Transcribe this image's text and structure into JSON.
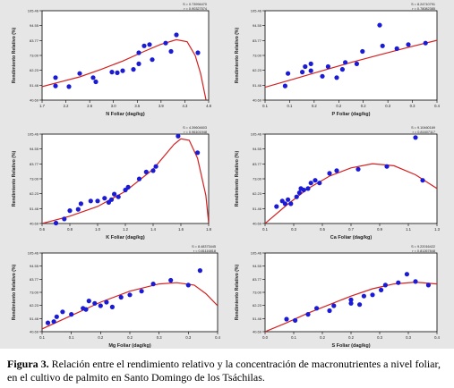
{
  "caption": {
    "label": "Figura 3.",
    "text": "Relación entre el rendimiento relativo y la concentración de macronutrientes a nivel foliar, en el cultivo de palmito en Santo Domingo de los Tsáchilas."
  },
  "colors": {
    "point": "#1b1bd6",
    "curve": "#d42020",
    "panel": "#e6e6e6",
    "plot_bg": "#ffffff"
  },
  "chart_data": [
    {
      "type": "scatter",
      "xlabel": "N Foliar (dag/kg)",
      "ylabel": "Rendimiento Relativo (%)",
      "stats": [
        "S = 0.73994470",
        "r = 0.90327574"
      ],
      "xticks": [
        "1.7",
        "2.2",
        "2.6",
        "3.0",
        "3.5",
        "3.9",
        "4.3",
        "4.8"
      ],
      "yticks": [
        "40.69",
        "51.46",
        "62.23",
        "73.00",
        "83.77",
        "94.55",
        "105.46"
      ],
      "xlim": [
        1.7,
        4.8
      ],
      "ylim": [
        40.69,
        105.46
      ],
      "points": [
        [
          1.95,
          57
        ],
        [
          1.95,
          51
        ],
        [
          2.2,
          50.5
        ],
        [
          2.4,
          60
        ],
        [
          2.65,
          57
        ],
        [
          2.7,
          54
        ],
        [
          3.0,
          61
        ],
        [
          3.1,
          60.5
        ],
        [
          3.2,
          62
        ],
        [
          3.4,
          63
        ],
        [
          3.5,
          67
        ],
        [
          3.5,
          75
        ],
        [
          3.6,
          80
        ],
        [
          3.7,
          81
        ],
        [
          3.75,
          70
        ],
        [
          4.0,
          82
        ],
        [
          4.1,
          76
        ],
        [
          4.2,
          88
        ],
        [
          4.6,
          75
        ]
      ],
      "curve": [
        [
          1.7,
          50.5
        ],
        [
          2.0,
          53.5
        ],
        [
          2.4,
          57.5
        ],
        [
          2.8,
          63
        ],
        [
          3.2,
          69
        ],
        [
          3.6,
          76
        ],
        [
          3.9,
          81
        ],
        [
          4.2,
          84.5
        ],
        [
          4.4,
          83
        ],
        [
          4.55,
          73
        ],
        [
          4.65,
          60
        ],
        [
          4.75,
          41
        ]
      ]
    },
    {
      "type": "scatter",
      "xlabel": "P Foliar (dag/kg)",
      "ylabel": "Rendimiento Relativo (%)",
      "stats": [
        "S = 8.24710791",
        "r = 0.78082385"
      ],
      "xticks": [
        "0.1",
        "0.1",
        "0.2",
        "0.2",
        "0.2",
        "0.3",
        "0.3",
        "0.4"
      ],
      "yticks": [
        "40.69",
        "51.46",
        "62.23",
        "73.00",
        "83.77",
        "94.55",
        "105.46"
      ],
      "xlim": [
        0.1,
        0.4
      ],
      "ylim": [
        40.69,
        105.46
      ],
      "points": [
        [
          0.135,
          51
        ],
        [
          0.14,
          60
        ],
        [
          0.165,
          61
        ],
        [
          0.17,
          65
        ],
        [
          0.18,
          67
        ],
        [
          0.18,
          62
        ],
        [
          0.2,
          58
        ],
        [
          0.21,
          65
        ],
        [
          0.225,
          57
        ],
        [
          0.235,
          63
        ],
        [
          0.24,
          68
        ],
        [
          0.26,
          67
        ],
        [
          0.27,
          76
        ],
        [
          0.3,
          95
        ],
        [
          0.305,
          80
        ],
        [
          0.33,
          78
        ],
        [
          0.35,
          81
        ],
        [
          0.38,
          82
        ]
      ],
      "curve": [
        [
          0.1,
          50
        ],
        [
          0.15,
          56
        ],
        [
          0.2,
          62
        ],
        [
          0.25,
          68
        ],
        [
          0.3,
          73.5
        ],
        [
          0.35,
          79
        ],
        [
          0.4,
          84
        ]
      ]
    },
    {
      "type": "scatter",
      "xlabel": "K Foliar (dag/kg)",
      "ylabel": "Rendimiento Relativo (%)",
      "stats": [
        "S = 4.39604603",
        "r = 0.96101948"
      ],
      "xticks": [
        "0.6",
        "0.8",
        "1.0",
        "1.2",
        "1.4",
        "1.6",
        "1.8"
      ],
      "yticks": [
        "40.69",
        "51.46",
        "62.23",
        "73.00",
        "83.77",
        "94.55",
        "105.46"
      ],
      "xlim": [
        0.6,
        1.8
      ],
      "ylim": [
        40.69,
        105.46
      ],
      "points": [
        [
          0.7,
          41
        ],
        [
          0.76,
          44
        ],
        [
          0.8,
          50
        ],
        [
          0.86,
          51
        ],
        [
          0.88,
          55
        ],
        [
          0.95,
          57
        ],
        [
          1.0,
          57
        ],
        [
          1.05,
          59
        ],
        [
          1.08,
          56
        ],
        [
          1.1,
          58
        ],
        [
          1.12,
          62
        ],
        [
          1.15,
          60
        ],
        [
          1.2,
          65
        ],
        [
          1.22,
          67
        ],
        [
          1.3,
          73
        ],
        [
          1.35,
          78
        ],
        [
          1.4,
          79
        ],
        [
          1.42,
          82
        ],
        [
          1.58,
          104
        ],
        [
          1.72,
          92
        ]
      ],
      "curve": [
        [
          0.6,
          40.7
        ],
        [
          0.8,
          46
        ],
        [
          1.0,
          53
        ],
        [
          1.2,
          64
        ],
        [
          1.4,
          80
        ],
        [
          1.55,
          98
        ],
        [
          1.6,
          102
        ],
        [
          1.66,
          101
        ],
        [
          1.72,
          88
        ],
        [
          1.78,
          61
        ],
        [
          1.8,
          41
        ]
      ]
    },
    {
      "type": "scatter",
      "xlabel": "Ca Foliar (dag/kg)",
      "ylabel": "Rendimiento Relativo (%)",
      "stats": [
        "S = 9.10460169",
        "r = 0.81607117"
      ],
      "xticks": [
        "0.1",
        "0.3",
        "0.5",
        "0.7",
        "0.9",
        "1.1",
        "1.3"
      ],
      "yticks": [
        "40.69",
        "51.46",
        "62.23",
        "73.00",
        "83.77",
        "94.55",
        "105.46"
      ],
      "xlim": [
        0.1,
        1.3
      ],
      "ylim": [
        40.69,
        105.46
      ],
      "points": [
        [
          0.18,
          53
        ],
        [
          0.22,
          57
        ],
        [
          0.24,
          55
        ],
        [
          0.26,
          58
        ],
        [
          0.28,
          55
        ],
        [
          0.32,
          60
        ],
        [
          0.34,
          63
        ],
        [
          0.35,
          66
        ],
        [
          0.37,
          65
        ],
        [
          0.4,
          66
        ],
        [
          0.42,
          70
        ],
        [
          0.45,
          72
        ],
        [
          0.48,
          70
        ],
        [
          0.55,
          77
        ],
        [
          0.6,
          79
        ],
        [
          0.75,
          80
        ],
        [
          0.95,
          82
        ],
        [
          1.15,
          103
        ],
        [
          1.2,
          72
        ]
      ],
      "curve": [
        [
          0.1,
          40.7
        ],
        [
          0.25,
          54
        ],
        [
          0.4,
          66
        ],
        [
          0.55,
          75
        ],
        [
          0.7,
          81
        ],
        [
          0.85,
          84
        ],
        [
          1.0,
          82.5
        ],
        [
          1.15,
          76
        ],
        [
          1.3,
          66
        ]
      ]
    },
    {
      "type": "scatter",
      "xlabel": "Mg Foliar (dag/kg)",
      "ylabel": "Rendimiento Relativo (%)",
      "stats": [
        "S = 8.48373445",
        "r = 0.81116818"
      ],
      "xticks": [
        "0.1",
        "0.1",
        "0.2",
        "0.2",
        "0.3",
        "0.3",
        "0.4"
      ],
      "yticks": [
        "40.69",
        "51.46",
        "62.23",
        "73.00",
        "83.77",
        "94.55",
        "105.46"
      ],
      "xlim": [
        0.1,
        0.4
      ],
      "ylim": [
        40.69,
        105.46
      ],
      "points": [
        [
          0.11,
          48
        ],
        [
          0.12,
          49
        ],
        [
          0.125,
          53
        ],
        [
          0.135,
          57
        ],
        [
          0.15,
          55
        ],
        [
          0.17,
          60
        ],
        [
          0.175,
          59
        ],
        [
          0.18,
          66
        ],
        [
          0.19,
          64
        ],
        [
          0.2,
          62
        ],
        [
          0.21,
          65
        ],
        [
          0.22,
          61
        ],
        [
          0.235,
          69
        ],
        [
          0.25,
          71
        ],
        [
          0.27,
          74
        ],
        [
          0.29,
          80
        ],
        [
          0.32,
          83
        ],
        [
          0.35,
          79
        ],
        [
          0.37,
          91
        ]
      ],
      "curve": [
        [
          0.1,
          43
        ],
        [
          0.15,
          54
        ],
        [
          0.2,
          65
        ],
        [
          0.25,
          74
        ],
        [
          0.3,
          80
        ],
        [
          0.33,
          81
        ],
        [
          0.36,
          79
        ],
        [
          0.38,
          72
        ],
        [
          0.4,
          62
        ]
      ]
    },
    {
      "type": "scatter",
      "xlabel": "S Foliar (dag/kg)",
      "ylabel": "Rendimiento Relativo (%)",
      "stats": [
        "S = 9.22016422",
        "r = 0.81267848"
      ],
      "xticks": [
        "0.0",
        "0.1",
        "0.2",
        "0.2",
        "0.3",
        "0.3",
        "0.4"
      ],
      "yticks": [
        "40.69",
        "51.46",
        "62.23",
        "73.00",
        "83.77",
        "94.55",
        "105.46"
      ],
      "xlim": [
        0.0,
        0.4
      ],
      "ylim": [
        40.69,
        105.46
      ],
      "points": [
        [
          0.05,
          51
        ],
        [
          0.07,
          50
        ],
        [
          0.1,
          55
        ],
        [
          0.12,
          60
        ],
        [
          0.15,
          58
        ],
        [
          0.16,
          62
        ],
        [
          0.2,
          64
        ],
        [
          0.2,
          67
        ],
        [
          0.22,
          63
        ],
        [
          0.23,
          70
        ],
        [
          0.25,
          71
        ],
        [
          0.27,
          75
        ],
        [
          0.28,
          79
        ],
        [
          0.31,
          81
        ],
        [
          0.33,
          88
        ],
        [
          0.35,
          82
        ],
        [
          0.38,
          79
        ]
      ],
      "curve": [
        [
          0.0,
          40.7
        ],
        [
          0.05,
          48
        ],
        [
          0.1,
          56
        ],
        [
          0.15,
          63
        ],
        [
          0.2,
          70
        ],
        [
          0.25,
          76
        ],
        [
          0.3,
          80
        ],
        [
          0.35,
          81.5
        ],
        [
          0.4,
          80
        ]
      ]
    }
  ]
}
